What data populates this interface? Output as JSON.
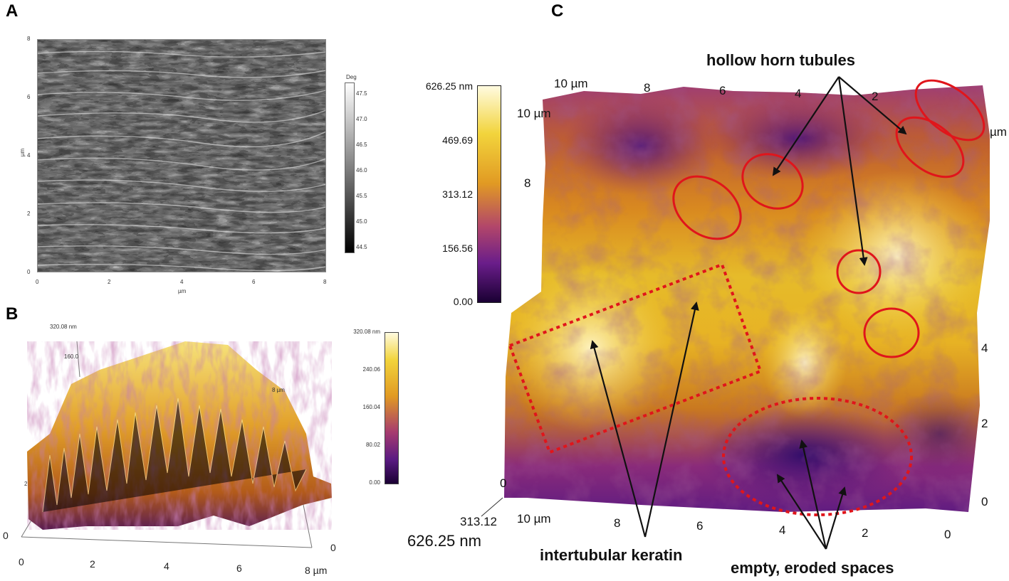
{
  "panels": {
    "A": {
      "letter": "A",
      "y_ticks": [
        "8",
        "6",
        "4",
        "2",
        "0"
      ],
      "x_ticks": [
        "0",
        "2",
        "4",
        "6",
        "8"
      ],
      "y_label": "µm",
      "x_label": "µm",
      "colorbar_title": "Deg",
      "colorbar_ticks": [
        "47.5",
        "47.0",
        "46.5",
        "46.0",
        "45.5",
        "45.0",
        "44.5"
      ]
    },
    "B": {
      "letter": "B",
      "z_top": "320.08 nm",
      "z_mid": "160.0",
      "axis_unit_partial": "8 µm",
      "x_ticks": [
        "0",
        "2",
        "4",
        "6",
        "8 µm"
      ],
      "left_tick": "0",
      "left_mid_tick": "2",
      "right_tick": "0",
      "colorbar_ticks": [
        "320.08 nm",
        "240.06",
        "160.04",
        "80.02",
        "0.00"
      ]
    },
    "C": {
      "letter": "C",
      "colorbar_ticks": [
        "626.25 nm",
        "469.69",
        "313.12",
        "156.56",
        "0.00"
      ],
      "top_ticks": [
        "10 µm",
        "8",
        "6",
        "4",
        "2"
      ],
      "left_ticks": [
        "10 µm",
        "8"
      ],
      "right_ticks": [
        "µm",
        "4",
        "2",
        "0"
      ],
      "bottom_ticks": [
        "10 µm",
        "8",
        "6",
        "4",
        "2",
        "0"
      ],
      "z_mid": "313.12",
      "z_max": "626.25 nm",
      "corner_zero": "0",
      "annotations": {
        "hollow": "hollow horn tubules",
        "intertubular": "intertubular keratin",
        "empty": "empty, eroded spaces"
      }
    }
  },
  "colors": {
    "annotation_red": "#e0151b",
    "arrow": "#111111",
    "inferno_dark": "#1a0033",
    "inferno_purple": "#7b1f8c",
    "inferno_orange": "#d9831c",
    "inferno_yellow": "#f2d43c",
    "inferno_light": "#fffbe0"
  }
}
